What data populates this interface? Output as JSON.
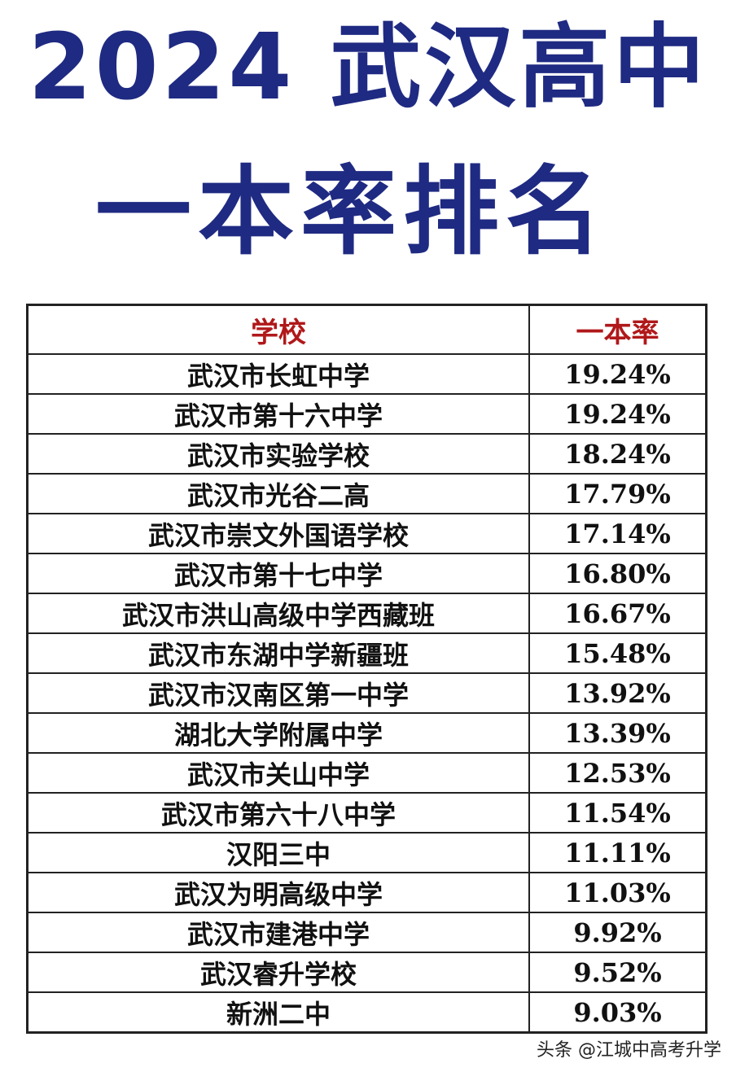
{
  "title": {
    "line1": "2024 武汉高中",
    "line2": "一本率排名"
  },
  "table": {
    "headers": [
      "学校",
      "一本率"
    ],
    "rows": [
      {
        "school": "武汉市长虹中学",
        "rate": "19.24%"
      },
      {
        "school": "武汉市第十六中学",
        "rate": "19.24%"
      },
      {
        "school": "武汉市实验学校",
        "rate": "18.24%"
      },
      {
        "school": "武汉市光谷二高",
        "rate": "17.79%"
      },
      {
        "school": "武汉市崇文外国语学校",
        "rate": "17.14%"
      },
      {
        "school": "武汉市第十七中学",
        "rate": "16.80%"
      },
      {
        "school": "武汉市洪山高级中学西藏班",
        "rate": "16.67%"
      },
      {
        "school": "武汉市东湖中学新疆班",
        "rate": "15.48%"
      },
      {
        "school": "武汉市汉南区第一中学",
        "rate": "13.92%"
      },
      {
        "school": "湖北大学附属中学",
        "rate": "13.39%"
      },
      {
        "school": "武汉市关山中学",
        "rate": "12.53%"
      },
      {
        "school": "武汉市第六十八中学",
        "rate": "11.54%"
      },
      {
        "school": "汉阳三中",
        "rate": "11.11%"
      },
      {
        "school": "武汉为明高级中学",
        "rate": "11.03%"
      },
      {
        "school": "武汉市建港中学",
        "rate": "9.92%"
      },
      {
        "school": "武汉睿升学校",
        "rate": "9.52%"
      },
      {
        "school": "新洲二中",
        "rate": "9.03%"
      }
    ]
  },
  "watermark": "头条 @江城中高考升学",
  "colors": {
    "title": "#1f2a82",
    "header": "#b0181a"
  }
}
